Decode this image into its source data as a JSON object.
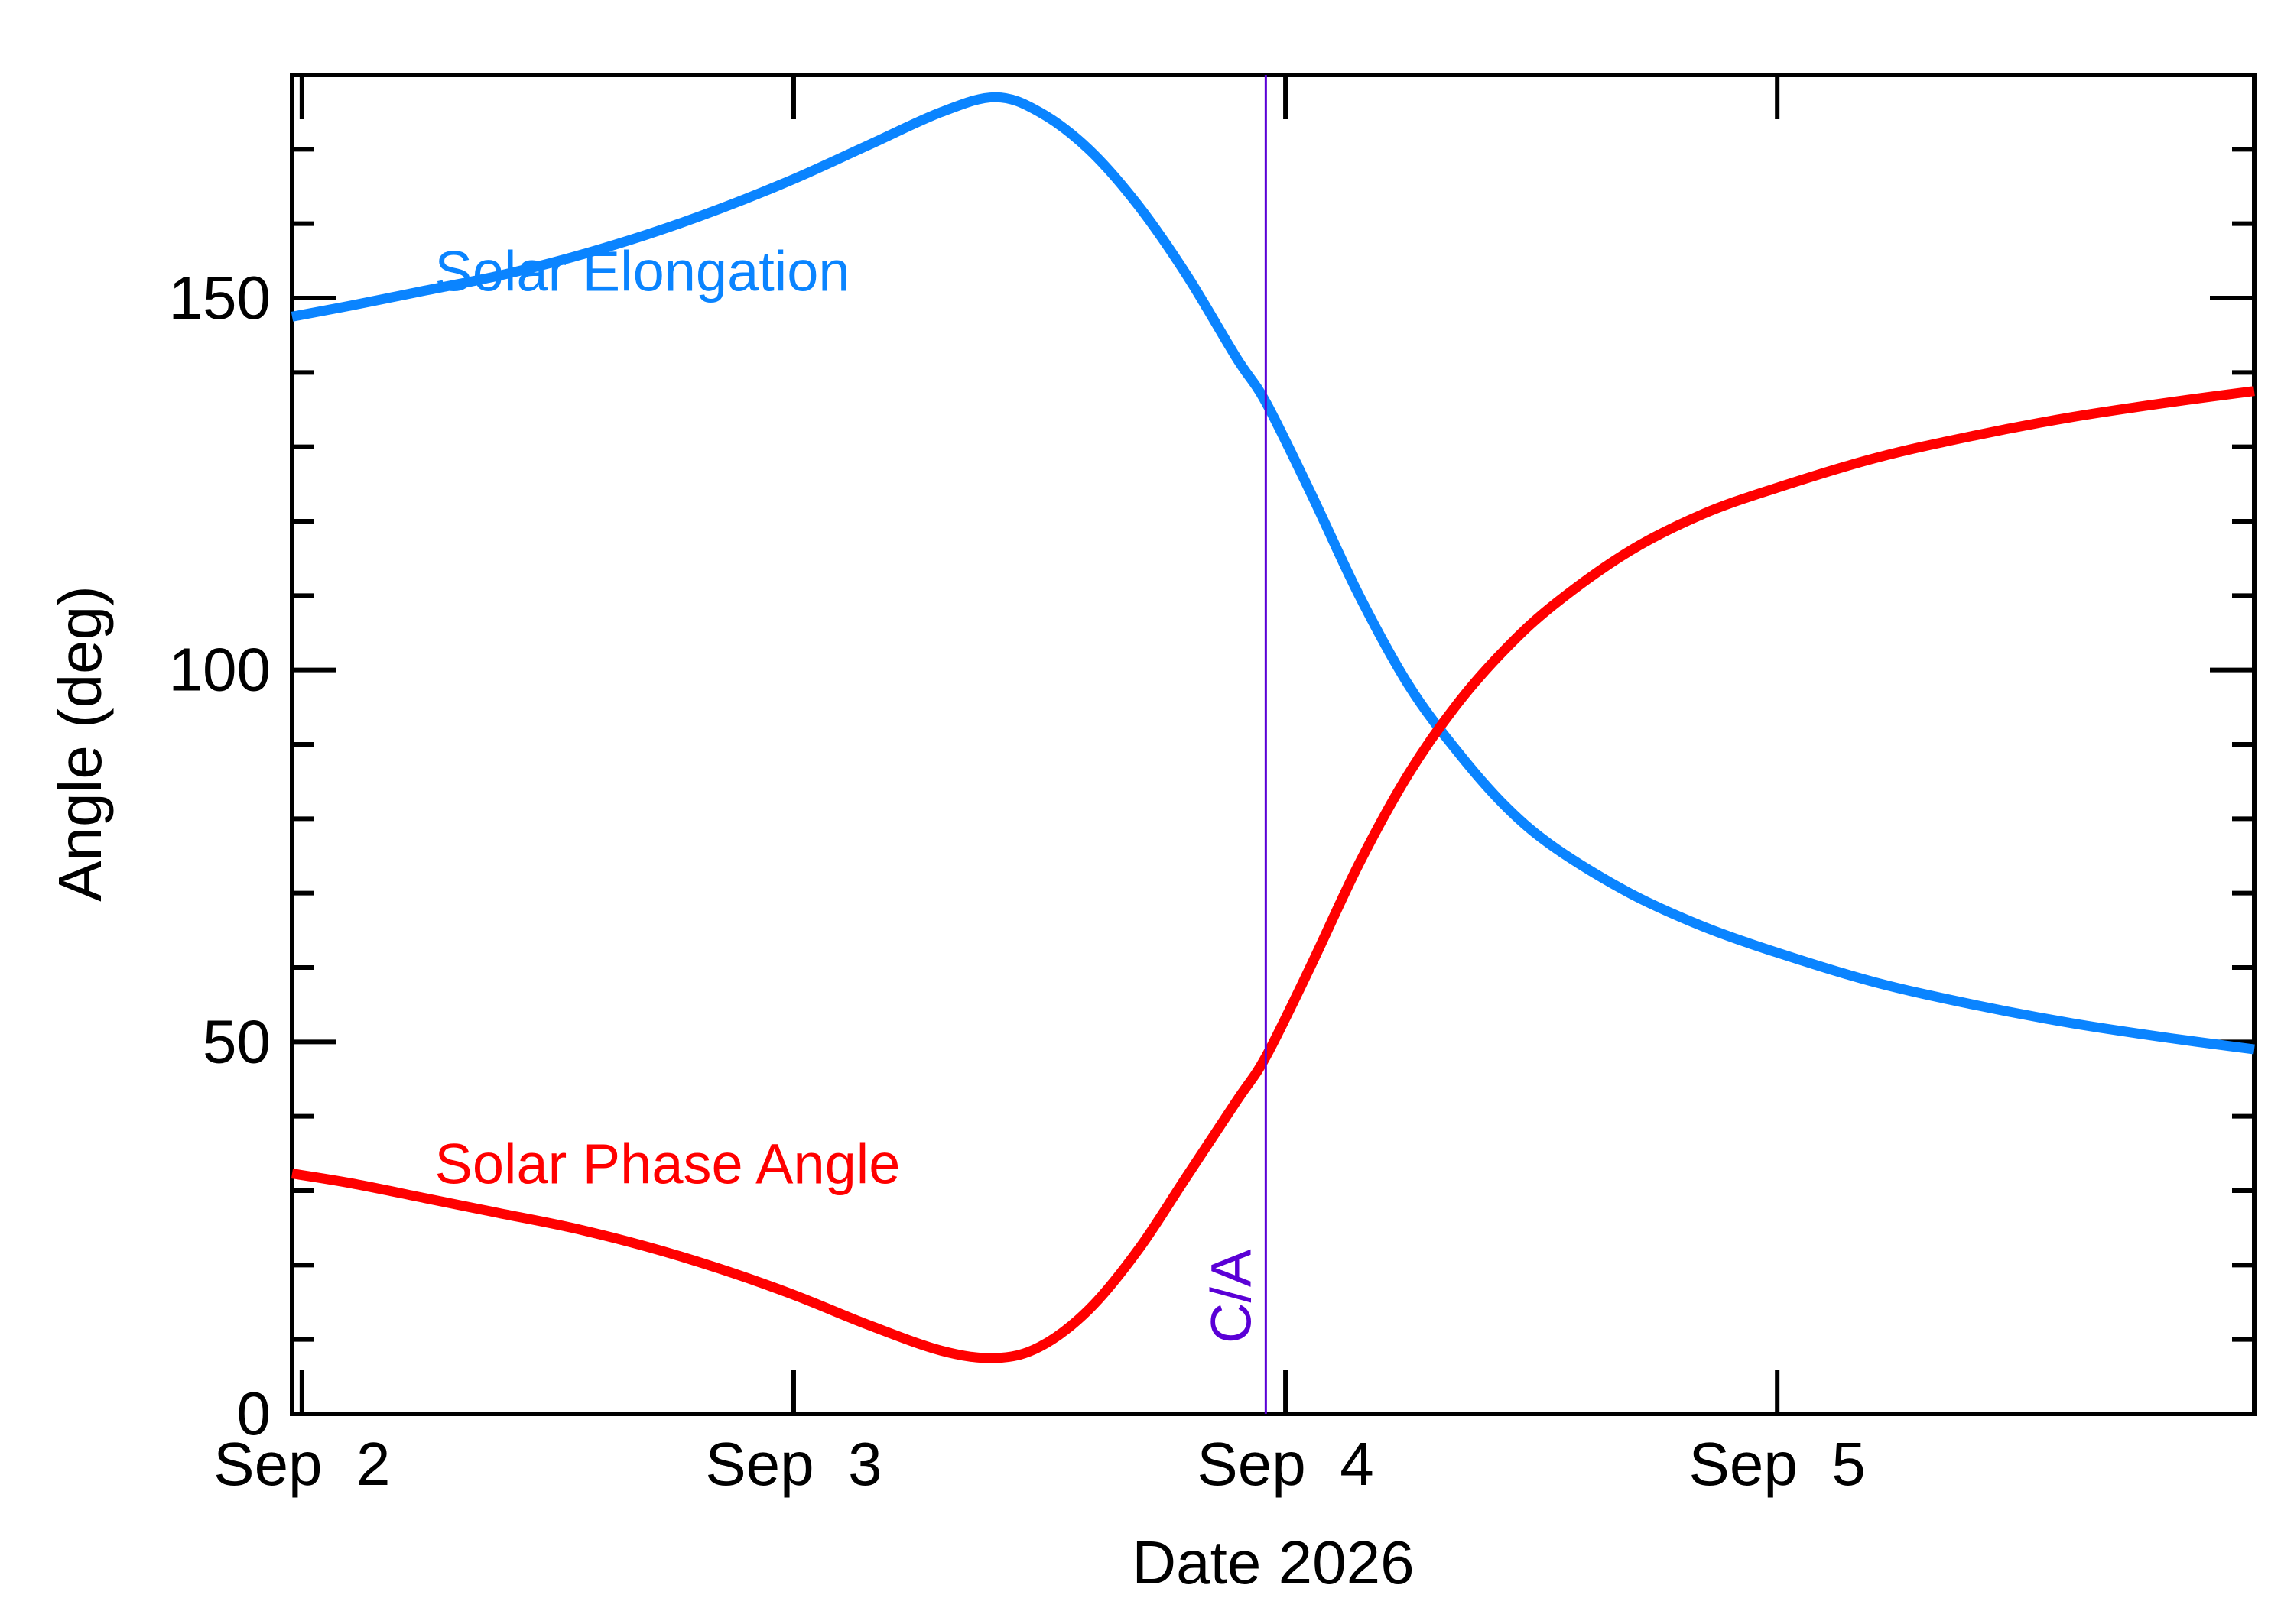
{
  "chart_data": {
    "type": "line",
    "xlabel": "Date 2026",
    "ylabel": "Angle (deg)",
    "x_ticks": [
      "Sep  2",
      "Sep  3",
      "Sep  4",
      "Sep  5"
    ],
    "x_tick_days": [
      2,
      3,
      4,
      5
    ],
    "xlim": [
      1.98,
      5.97
    ],
    "ylim": [
      0,
      180
    ],
    "y_ticks": [
      0,
      50,
      100,
      150
    ],
    "y_minor_step": 10,
    "grid": false,
    "series": [
      {
        "name": "Solar Elongation",
        "color": "#0a84ff",
        "x": [
          1.98,
          2.1,
          2.25,
          2.4,
          2.55,
          2.7,
          2.85,
          3.0,
          3.15,
          3.3,
          3.41,
          3.5,
          3.6,
          3.7,
          3.8,
          3.9,
          3.96,
          4.05,
          4.15,
          4.25,
          4.35,
          4.45,
          4.55,
          4.7,
          4.85,
          5.0,
          5.2,
          5.4,
          5.6,
          5.8,
          5.97
        ],
        "y": [
          147.5,
          149,
          151,
          153,
          155.5,
          158.5,
          162,
          166,
          170.5,
          175,
          177,
          175,
          170,
          162.5,
          153,
          142,
          136,
          124,
          110,
          98,
          89,
          81.5,
          76,
          70,
          65.5,
          62,
          58,
          55,
          52.5,
          50.5,
          49
        ]
      },
      {
        "name": "Solar Phase Angle",
        "color": "#ff0000",
        "x": [
          1.98,
          2.1,
          2.25,
          2.4,
          2.55,
          2.7,
          2.85,
          3.0,
          3.15,
          3.3,
          3.41,
          3.5,
          3.6,
          3.7,
          3.8,
          3.9,
          3.96,
          4.05,
          4.15,
          4.25,
          4.35,
          4.45,
          4.55,
          4.7,
          4.85,
          5.0,
          5.2,
          5.4,
          5.6,
          5.8,
          5.97
        ],
        "y": [
          32.3,
          31,
          29,
          27,
          25,
          22.5,
          19.5,
          16,
          12,
          8.5,
          7.5,
          9,
          14,
          22,
          32,
          42,
          48,
          60,
          74,
          86,
          95.5,
          103,
          109,
          116,
          121,
          124.5,
          128.5,
          131.5,
          134,
          136,
          137.5
        ]
      }
    ],
    "annotations": [
      {
        "text": "Solar Elongation",
        "color": "#0a84ff",
        "x": 2.27,
        "y": 151
      },
      {
        "text": "Solar Phase Angle",
        "color": "#ff0000",
        "x": 2.27,
        "y": 31
      }
    ],
    "vline": {
      "label": "C/A",
      "x": 3.96,
      "color": "#5a00d6"
    }
  }
}
